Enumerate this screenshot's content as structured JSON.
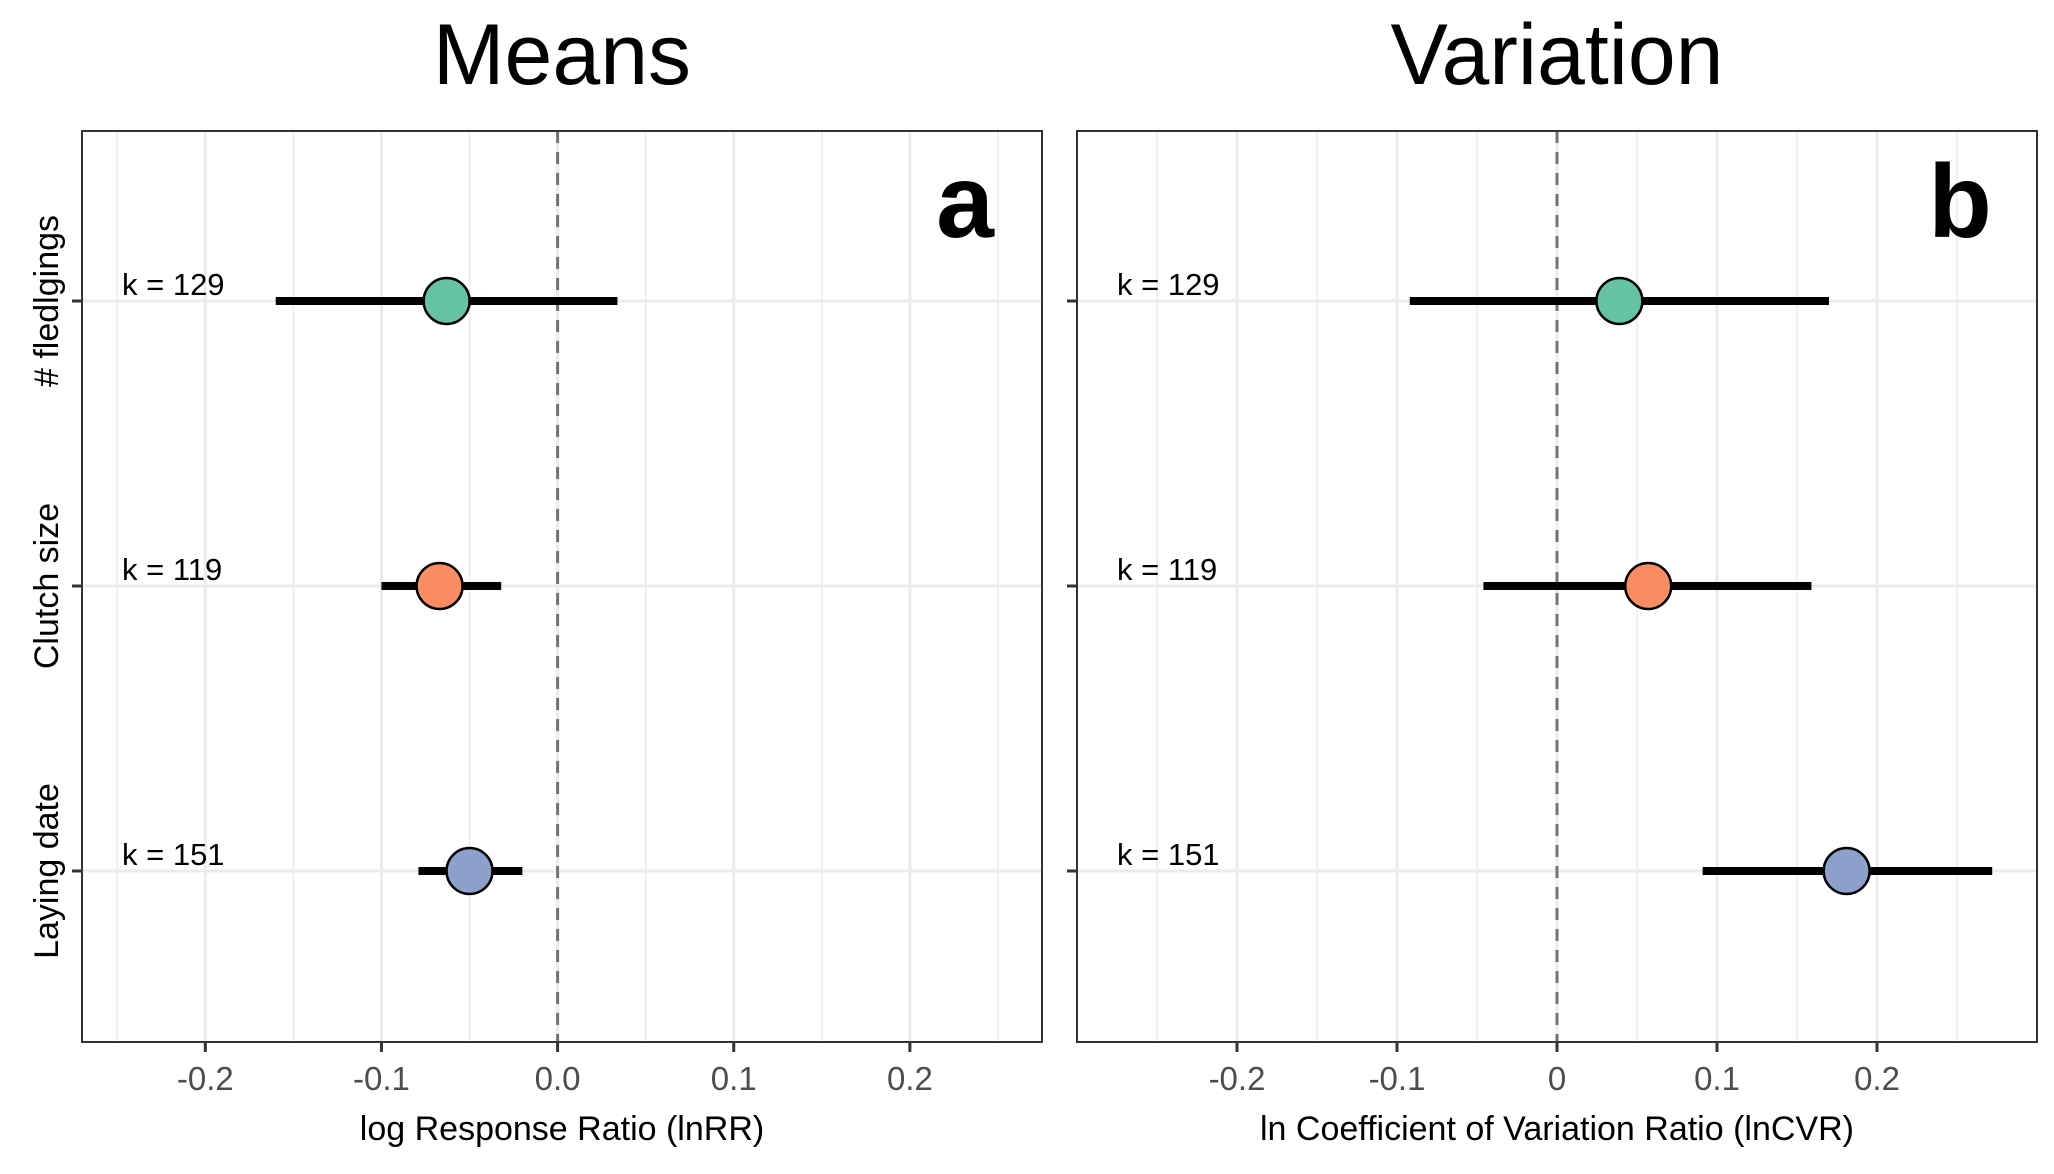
{
  "figure": {
    "y_categories": [
      "# fledlgings",
      "Clutch size",
      "Laying date"
    ],
    "colors": {
      "fledglings": "#66c2a5",
      "clutch": "#fc8d62",
      "laying": "#8da0cb",
      "grid": "#ebebeb",
      "zero_line": "#737373",
      "frame": "#333333",
      "tick_text": "#4d4d4d"
    }
  },
  "chart_data": [
    {
      "type": "scatter",
      "panel_label": "a",
      "title": "Means",
      "xlabel": "log Response Ratio (lnRR)",
      "ylabel": "",
      "xlim": [
        -0.27,
        0.275
      ],
      "x_ticks": [
        -0.2,
        -0.1,
        0.0,
        0.1,
        0.2
      ],
      "x_tick_labels": [
        "-0.2",
        "-0.1",
        "0.0",
        "0.1",
        "0.2"
      ],
      "reference_line_x": 0,
      "grid": true,
      "points": [
        {
          "category": "# fledlgings",
          "estimate": -0.063,
          "ci_lower": -0.16,
          "ci_upper": 0.034,
          "k_label": "k = 129",
          "color": "#66c2a5"
        },
        {
          "category": "Clutch size",
          "estimate": -0.067,
          "ci_lower": -0.1,
          "ci_upper": -0.032,
          "k_label": "k = 119",
          "color": "#fc8d62"
        },
        {
          "category": "Laying date",
          "estimate": -0.05,
          "ci_lower": -0.079,
          "ci_upper": -0.02,
          "k_label": "k = 151",
          "color": "#8da0cb"
        }
      ]
    },
    {
      "type": "scatter",
      "panel_label": "b",
      "title": "Variation",
      "xlabel": "ln Coefficient of Variation Ratio (lnCVR)",
      "ylabel": "",
      "xlim": [
        -0.3,
        0.3
      ],
      "x_ticks": [
        -0.2,
        -0.1,
        0,
        0.1,
        0.2
      ],
      "x_tick_labels": [
        "-0.2",
        "-0.1",
        "0",
        "0.1",
        "0.2"
      ],
      "reference_line_x": 0,
      "grid": true,
      "points": [
        {
          "category": "# fledlgings",
          "estimate": 0.039,
          "ci_lower": -0.092,
          "ci_upper": 0.17,
          "k_label": "k = 129",
          "color": "#66c2a5"
        },
        {
          "category": "Clutch size",
          "estimate": 0.057,
          "ci_lower": -0.046,
          "ci_upper": 0.159,
          "k_label": "k = 119",
          "color": "#fc8d62"
        },
        {
          "category": "Laying date",
          "estimate": 0.181,
          "ci_lower": 0.091,
          "ci_upper": 0.272,
          "k_label": "k = 151",
          "color": "#8da0cb"
        }
      ]
    }
  ]
}
